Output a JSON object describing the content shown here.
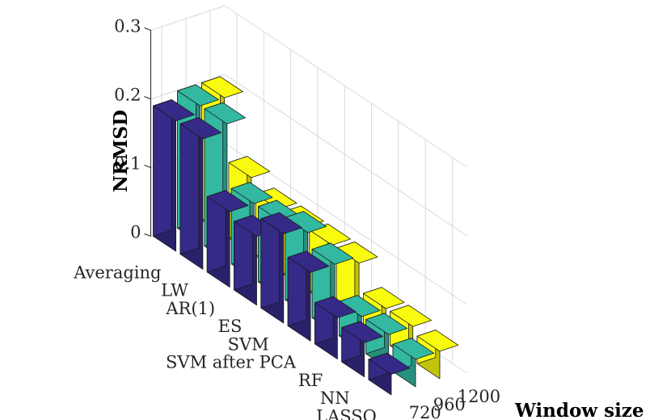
{
  "chart_data": {
    "type": "bar",
    "title": "",
    "zlabel": "NRMSD",
    "ylabel": "Window size",
    "zlim": [
      0,
      0.3
    ],
    "zticks": [
      "0",
      "0.1",
      "0.2",
      "0.3"
    ],
    "grid": true,
    "methods": [
      "Averaging",
      "LW",
      "AR(1)",
      "ES",
      "SVM",
      "SVM after PCA",
      "RF",
      "NN",
      "LASSO"
    ],
    "windows": [
      "720",
      "960",
      "1200"
    ],
    "colors": {
      "720": "#352a87",
      "960": "#33b8a1",
      "1200": "#f9fb0e"
    },
    "series": [
      {
        "name": "720",
        "values": [
          0.19,
          0.19,
          0.11,
          0.1,
          0.13,
          0.1,
          0.06,
          0.05,
          0.03
        ]
      },
      {
        "name": "960",
        "values": [
          0.2,
          0.2,
          0.11,
          0.11,
          0.12,
          0.1,
          0.05,
          0.05,
          0.04
        ]
      },
      {
        "name": "1200",
        "values": [
          0.2,
          0.11,
          0.09,
          0.09,
          0.09,
          0.09,
          0.05,
          0.05,
          0.04
        ]
      }
    ]
  }
}
